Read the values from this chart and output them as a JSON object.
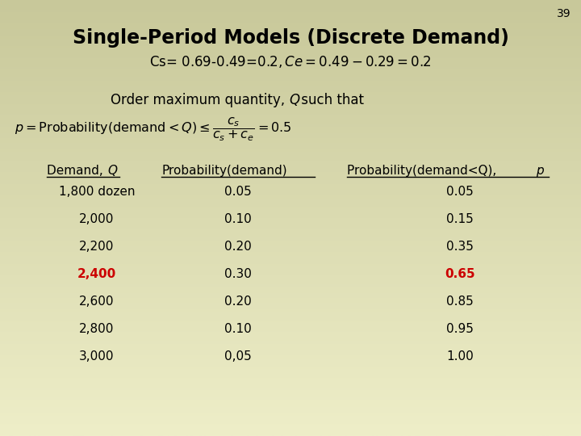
{
  "slide_number": "39",
  "title": "Single-Period Models (Discrete Demand)",
  "subtitle": "Cs= 0.69-0.49=$0.2,  Ce= 0.49-0.29=$0.2",
  "bg_color_top": "#c8c89a",
  "bg_color_bottom": "#eeeec8",
  "title_color": "#000000",
  "highlight_color": "#cc0000",
  "normal_color": "#000000",
  "table_rows": [
    [
      "1,800 dozen",
      "0.05",
      "0.05",
      false
    ],
    [
      "2,000",
      "0.10",
      "0.15",
      false
    ],
    [
      "2,200",
      "0.20",
      "0.35",
      false
    ],
    [
      "2,400",
      "0.30",
      "0.65",
      true
    ],
    [
      "2,600",
      "0.20",
      "0.85",
      false
    ],
    [
      "2,800",
      "0.10",
      "0.95",
      false
    ],
    [
      "3,000",
      "0,05",
      "1.00",
      false
    ]
  ]
}
